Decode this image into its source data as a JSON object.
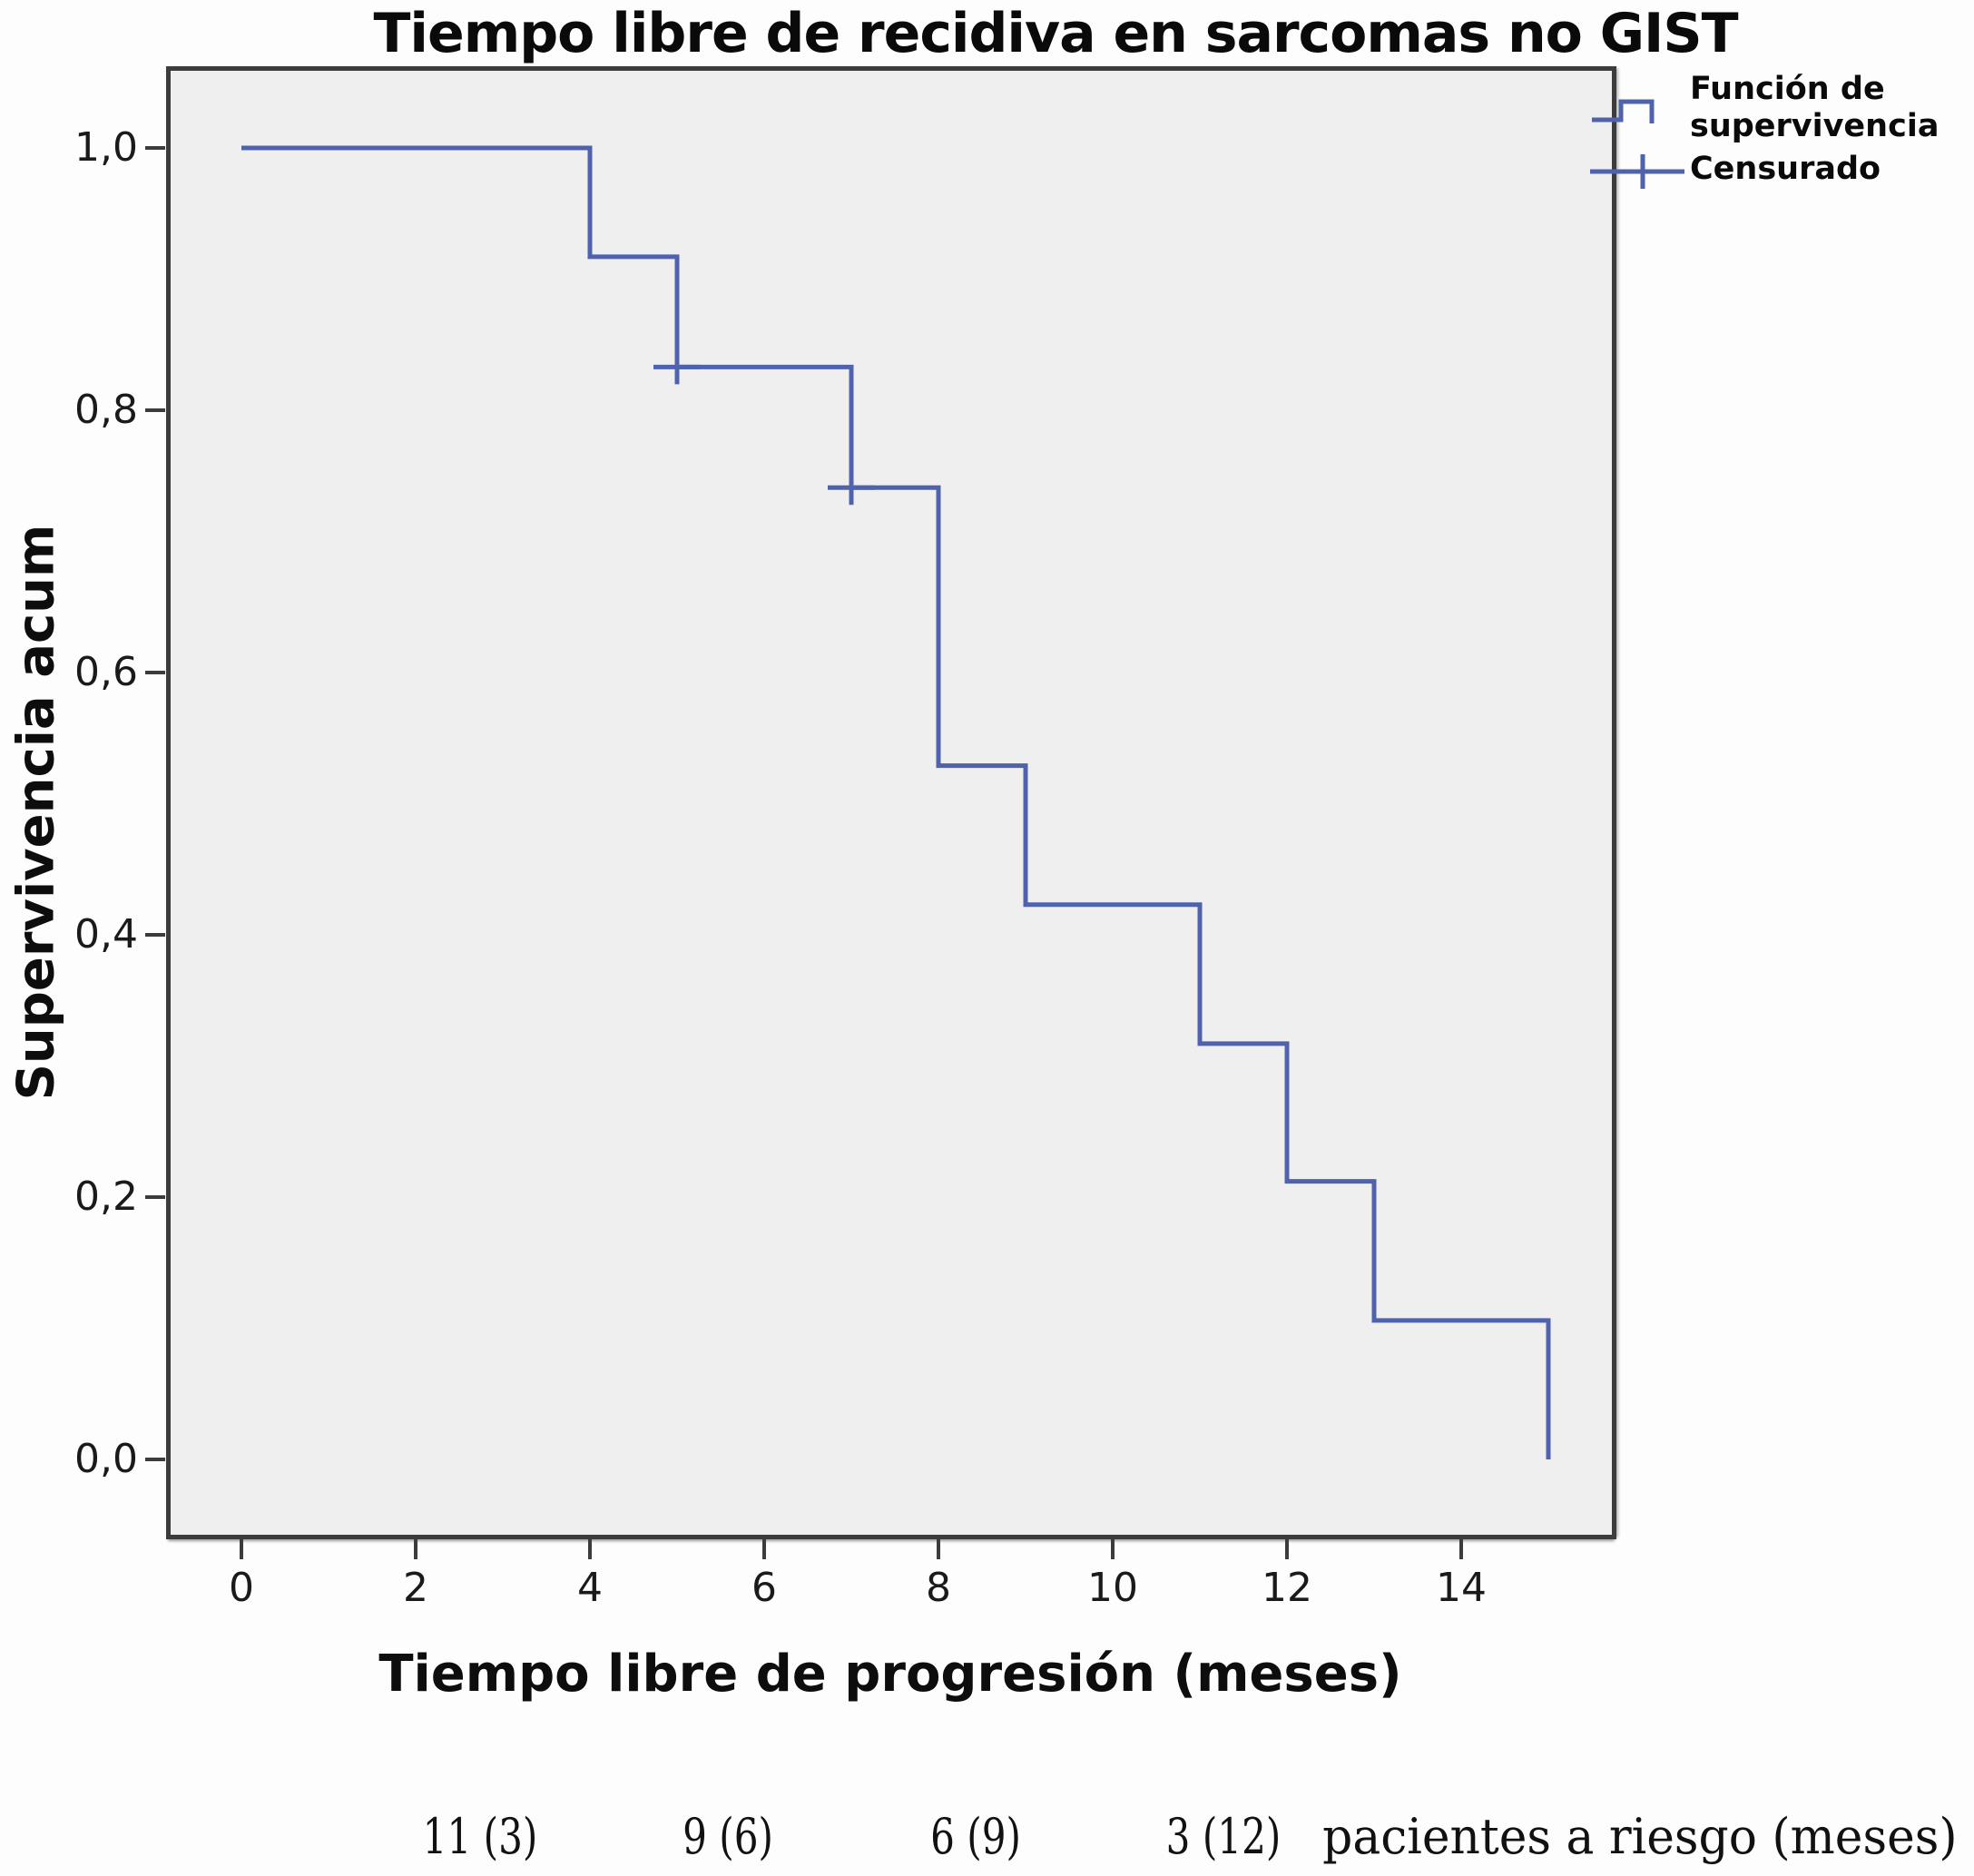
{
  "chart_data": {
    "type": "line",
    "subtype": "kaplan-meier-step",
    "title": "Tiempo libre de recidiva en sarcomas no GIST",
    "xlabel": "Tiempo libre de progresión (meses)",
    "ylabel": "Supervivencia acum",
    "xlim": [
      -0.85,
      15.75
    ],
    "ylim": [
      -0.06,
      1.06
    ],
    "grid": false,
    "legend_position": "top-right-outside",
    "colors": {
      "curve": "#4f63ac",
      "frame": "#3c3c3c",
      "plot_background": "#f0eff0"
    },
    "x_ticks": [
      {
        "value": 0,
        "label": "0"
      },
      {
        "value": 2,
        "label": "2"
      },
      {
        "value": 4,
        "label": "4"
      },
      {
        "value": 6,
        "label": "6"
      },
      {
        "value": 8,
        "label": "8"
      },
      {
        "value": 10,
        "label": "10"
      },
      {
        "value": 12,
        "label": "12"
      },
      {
        "value": 14,
        "label": "14"
      }
    ],
    "y_ticks": [
      {
        "value": 1.0,
        "label": "1,0"
      },
      {
        "value": 0.8,
        "label": "0,8"
      },
      {
        "value": 0.6,
        "label": "0,6"
      },
      {
        "value": 0.4,
        "label": "0,4"
      },
      {
        "value": 0.2,
        "label": "0,2"
      },
      {
        "value": 0.0,
        "label": "0,0"
      }
    ],
    "series": [
      {
        "name": "Función de supervivencia",
        "draw": "step-post",
        "start": [
          0,
          1.0
        ],
        "events": [
          [
            4,
            0.917
          ],
          [
            5,
            0.833
          ],
          [
            7,
            0.741
          ],
          [
            8,
            0.529
          ],
          [
            9,
            0.423
          ],
          [
            11,
            0.317
          ],
          [
            12,
            0.212
          ],
          [
            13,
            0.106
          ],
          [
            15,
            0.0
          ]
        ]
      }
    ],
    "censored": {
      "name": "Censurado",
      "points": [
        [
          5,
          0.833
        ],
        [
          7,
          0.741
        ]
      ]
    },
    "legend": [
      {
        "label": "Función de\nsupervivencia"
      },
      {
        "label": "Censurado"
      }
    ],
    "at_risk": {
      "entries": [
        {
          "label": "11 (3)",
          "time": 3
        },
        {
          "label": "9 (6)",
          "time": 6
        },
        {
          "label": "6 (9)",
          "time": 9
        },
        {
          "label": "3 (12)",
          "time": 12
        }
      ],
      "note": "pacientes a riesgo (meses)"
    }
  }
}
